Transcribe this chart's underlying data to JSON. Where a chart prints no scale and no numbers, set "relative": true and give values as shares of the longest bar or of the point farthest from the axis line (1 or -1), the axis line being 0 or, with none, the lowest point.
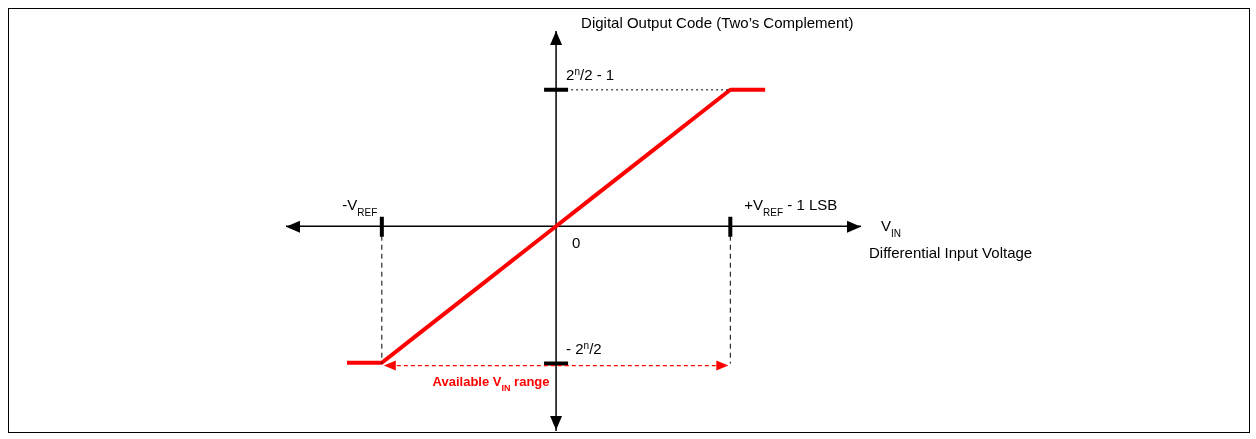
{
  "chart_data": {
    "type": "line",
    "ylabel": "Digital Output Code (Two’s Complement)",
    "relative": true,
    "categories": [
      null,
      null,
      null,
      null,
      null,
      null,
      null,
      null,
      null,
      null,
      null,
      null,
      null
    ],
    "series": [
      {
        "color": "#ff0000",
        "values": [
          -1,
          -1,
          -0.8,
          -0.6,
          -0.4,
          -0.2,
          0,
          0.2,
          0.4,
          0.6,
          0.8,
          1,
          1
        ]
      }
    ],
    "annotations": [
      "2$^{n}$/2 - 1",
      "- 2$^{n}$/2",
      "-V$_{REF}$",
      "0",
      "+V$_{REF}$ - 1 LSB",
      "Available V$_{IN}$ range",
      "V$_{IN}$",
      "Differential Input Voltage"
    ],
    "line_style": "solid"
  }
}
